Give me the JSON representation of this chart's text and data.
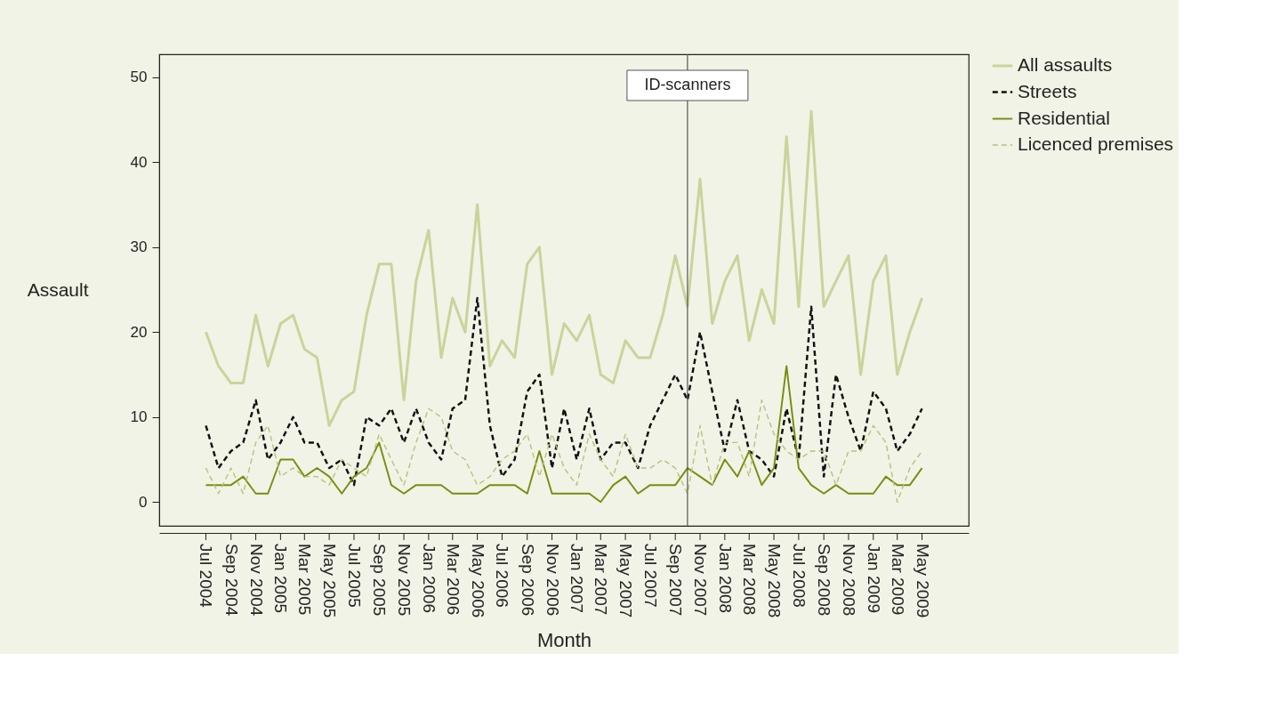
{
  "chart_data": {
    "type": "line",
    "xlabel": "Month",
    "ylabel": "Assault",
    "x": [
      "2004-07",
      "2004-08",
      "2004-09",
      "2004-10",
      "2004-11",
      "2004-12",
      "2005-01",
      "2005-02",
      "2005-03",
      "2005-04",
      "2005-05",
      "2005-06",
      "2005-07",
      "2005-08",
      "2005-09",
      "2005-10",
      "2005-11",
      "2005-12",
      "2006-01",
      "2006-02",
      "2006-03",
      "2006-04",
      "2006-05",
      "2006-06",
      "2006-07",
      "2006-08",
      "2006-09",
      "2006-10",
      "2006-11",
      "2006-12",
      "2007-01",
      "2007-02",
      "2007-03",
      "2007-04",
      "2007-05",
      "2007-06",
      "2007-07",
      "2007-08",
      "2007-09",
      "2007-10",
      "2007-11",
      "2007-12",
      "2008-01",
      "2008-02",
      "2008-03",
      "2008-04",
      "2008-05",
      "2008-06",
      "2008-07",
      "2008-08",
      "2008-09",
      "2008-10",
      "2008-11",
      "2008-12",
      "2009-01",
      "2009-02",
      "2009-03",
      "2009-04",
      "2009-05"
    ],
    "series": [
      {
        "name": "All assaults",
        "color": "#c8d49a",
        "line_style": "solid",
        "values": [
          20,
          16,
          14,
          14,
          22,
          16,
          21,
          22,
          18,
          17,
          9,
          12,
          13,
          22,
          28,
          28,
          12,
          26,
          32,
          17,
          24,
          20,
          35,
          16,
          19,
          17,
          28,
          30,
          15,
          21,
          19,
          22,
          15,
          14,
          19,
          17,
          17,
          22,
          29,
          23,
          38,
          21,
          26,
          29,
          19,
          25,
          21,
          43,
          23,
          46,
          23,
          26,
          29,
          15,
          26,
          29,
          15,
          20,
          24
        ]
      },
      {
        "name": "Streets",
        "color": "#111111",
        "line_style": "dashed",
        "values": [
          9,
          4,
          6,
          7,
          12,
          5,
          7,
          10,
          7,
          7,
          4,
          5,
          2,
          10,
          9,
          11,
          7,
          11,
          7,
          5,
          11,
          12,
          24,
          9,
          3,
          5,
          13,
          15,
          4,
          11,
          5,
          11,
          5,
          7,
          7,
          4,
          9,
          12,
          15,
          12,
          20,
          13,
          6,
          12,
          6,
          5,
          3,
          11,
          5,
          23,
          3,
          15,
          10,
          6,
          13,
          11,
          6,
          8,
          11
        ]
      },
      {
        "name": "Residential",
        "color": "#7a8c10",
        "line_style": "solid",
        "values": [
          2,
          2,
          2,
          3,
          1,
          1,
          5,
          5,
          3,
          4,
          3,
          1,
          3,
          4,
          7,
          2,
          1,
          2,
          2,
          2,
          1,
          1,
          1,
          2,
          2,
          2,
          1,
          6,
          1,
          1,
          1,
          1,
          0,
          2,
          3,
          1,
          2,
          2,
          2,
          4,
          3,
          2,
          5,
          3,
          6,
          2,
          4,
          16,
          4,
          2,
          1,
          2,
          1,
          1,
          1,
          3,
          2,
          2,
          4
        ]
      },
      {
        "name": "Licenced premises",
        "color": "#bcbf7a",
        "line_style": "dashed",
        "values": [
          4,
          1,
          4,
          1,
          7,
          9,
          3,
          4,
          3,
          3,
          2,
          5,
          4,
          3,
          8,
          5,
          2,
          7,
          11,
          10,
          6,
          5,
          2,
          3,
          5,
          6,
          8,
          3,
          8,
          4,
          2,
          8,
          5,
          3,
          8,
          4,
          4,
          5,
          4,
          1,
          9,
          2,
          7,
          7,
          3,
          12,
          8,
          6,
          5,
          6,
          6,
          2,
          6,
          6,
          9,
          7,
          0,
          4,
          6
        ]
      }
    ],
    "xlim": [
      "2004-03-08",
      "2009-08-24"
    ],
    "xticks": [
      {
        "value": "2004-07",
        "label": "Jul 2004"
      },
      {
        "value": "2004-09",
        "label": "Sep 2004"
      },
      {
        "value": "2004-11",
        "label": "Nov 2004"
      },
      {
        "value": "2005-01",
        "label": "Jan 2005"
      },
      {
        "value": "2005-03",
        "label": "Mar 2005"
      },
      {
        "value": "2005-05",
        "label": "May 2005"
      },
      {
        "value": "2005-07",
        "label": "Jul 2005"
      },
      {
        "value": "2005-09",
        "label": "Sep 2005"
      },
      {
        "value": "2005-11",
        "label": "Nov 2005"
      },
      {
        "value": "2006-01",
        "label": "Jan 2006"
      },
      {
        "value": "2006-03",
        "label": "Mar 2006"
      },
      {
        "value": "2006-05",
        "label": "May 2006"
      },
      {
        "value": "2006-07",
        "label": "Jul 2006"
      },
      {
        "value": "2006-09",
        "label": "Sep 2006"
      },
      {
        "value": "2006-11",
        "label": "Nov 2006"
      },
      {
        "value": "2007-01",
        "label": "Jan 2007"
      },
      {
        "value": "2007-03",
        "label": "Mar 2007"
      },
      {
        "value": "2007-05",
        "label": "May 2007"
      },
      {
        "value": "2007-07",
        "label": "Jul 2007"
      },
      {
        "value": "2007-09",
        "label": "Sep 2007"
      },
      {
        "value": "2007-11",
        "label": "Nov 2007"
      },
      {
        "value": "2008-01",
        "label": "Jan 2008"
      },
      {
        "value": "2008-03",
        "label": "Mar 2008"
      },
      {
        "value": "2008-05",
        "label": "May 2008"
      },
      {
        "value": "2008-07",
        "label": "Jul 2008"
      },
      {
        "value": "2008-09",
        "label": "Sep 2008"
      },
      {
        "value": "2008-11",
        "label": "Nov 2008"
      },
      {
        "value": "2009-01",
        "label": "Jan 2009"
      },
      {
        "value": "2009-03",
        "label": "Mar 2009"
      },
      {
        "value": "2009-05",
        "label": "May 2009"
      }
    ],
    "ylim": [
      -2.8,
      52.7
    ],
    "yticks": [
      0,
      10,
      20,
      30,
      40,
      50
    ],
    "ref_lines": [
      {
        "axis": "x",
        "value": "2007-10",
        "label": "ID-scanners",
        "color": "#555555"
      }
    ],
    "grid": false,
    "legend": "top right"
  }
}
